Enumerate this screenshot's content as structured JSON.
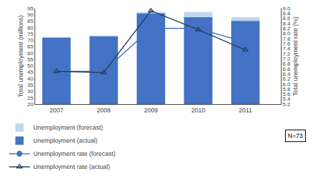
{
  "chart_data": {
    "type": "bar",
    "x": [
      2007,
      2008,
      2009,
      2010,
      2011
    ],
    "xlim": [
      2006.55,
      2011.75
    ],
    "xticks": [
      2007,
      2008,
      2009,
      2010,
      2011
    ],
    "ylabel": "Total unemployment (millions)",
    "y2label": "Total unemployment rate (%)",
    "ylim": [
      20,
      95
    ],
    "yticks": [
      20,
      25,
      30,
      35,
      40,
      45,
      50,
      55,
      60,
      65,
      70,
      75,
      80,
      85,
      90,
      95
    ],
    "y2lim": [
      5.2,
      9.0
    ],
    "y2ticks": [
      5.2,
      5.4,
      5.6,
      5.8,
      {
        "value": 6.0,
        "label": "6.0"
      },
      6.2,
      6.4,
      6.6,
      6.8,
      {
        "value": 7.0,
        "label": "7.0"
      },
      7.2,
      7.4,
      7.6,
      7.8,
      {
        "value": 8.0,
        "label": "8.0"
      },
      8.2,
      8.4,
      8.6,
      8.8,
      {
        "value": 9.0,
        "label": "9.0"
      }
    ],
    "series": [
      {
        "name": "Unemployment (forecast)",
        "type": "bar",
        "color": "#BDD7EE",
        "values": [
          72.5,
          73.5,
          92,
          92,
          88
        ]
      },
      {
        "name": "Unemployment (actual)",
        "type": "bar",
        "color": "#4472C4",
        "values": [
          72,
          73,
          91,
          88,
          85
        ]
      },
      {
        "name": "Unemployment rate (forecast)",
        "type": "line",
        "axis": "y2",
        "color": "#4472C4",
        "marker": "circle",
        "values": [
          6.5,
          6.5,
          8.2,
          8.2,
          7.65
        ]
      },
      {
        "name": "Unemployment rate (actual)",
        "type": "line",
        "axis": "y2",
        "color": "#243F60",
        "marker": "triangle-up-open",
        "values": [
          6.5,
          6.45,
          8.9,
          8.15,
          7.35
        ]
      }
    ],
    "annotation": "N=73",
    "legend": "bottom",
    "grid": false
  }
}
